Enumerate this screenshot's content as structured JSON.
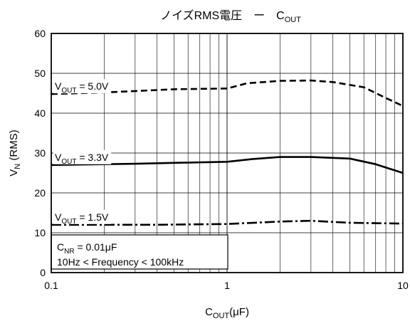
{
  "chart_data": {
    "type": "line",
    "title": "ノイズRMS電圧　ー　C",
    "title_sub": "OUT",
    "xlabel_main": "C",
    "xlabel_sub": "OUT",
    "xlabel_tail": "(μF)",
    "ylabel_main": "V",
    "ylabel_sub": "N",
    "ylabel_tail": " (RMS)",
    "x_scale": "log",
    "xlim": [
      0.1,
      10
    ],
    "ylim": [
      0,
      60
    ],
    "xticks": [
      0.1,
      1,
      10
    ],
    "xtick_labels": [
      "0.1",
      "1",
      "10"
    ],
    "yticks": [
      0,
      10,
      20,
      30,
      40,
      50,
      60
    ],
    "ytick_labels": [
      "0",
      "10",
      "20",
      "30",
      "40",
      "50",
      "60"
    ],
    "grid": true,
    "series": [
      {
        "label_main": "V",
        "label_sub": "OUT",
        "label_tail": " = 5.0V",
        "style": "dashed",
        "points": [
          [
            0.1,
            44.8
          ],
          [
            0.2,
            45.2
          ],
          [
            0.5,
            46.0
          ],
          [
            1.0,
            46.2
          ],
          [
            1.3,
            47.5
          ],
          [
            2.0,
            48.1
          ],
          [
            3.0,
            48.2
          ],
          [
            4.0,
            47.8
          ],
          [
            6.0,
            46.5
          ],
          [
            8.0,
            43.8
          ],
          [
            10,
            41.8
          ]
        ]
      },
      {
        "label_main": "V",
        "label_sub": "OUT",
        "label_tail": " = 3.3V",
        "style": "solid",
        "points": [
          [
            0.1,
            27.0
          ],
          [
            0.3,
            27.3
          ],
          [
            0.6,
            27.6
          ],
          [
            1.0,
            27.8
          ],
          [
            1.4,
            28.5
          ],
          [
            2.0,
            29.0
          ],
          [
            3.0,
            29.0
          ],
          [
            5.0,
            28.6
          ],
          [
            7.0,
            27.2
          ],
          [
            10,
            25.0
          ]
        ]
      },
      {
        "label_main": "V",
        "label_sub": "OUT",
        "label_tail": " = 1.5V",
        "style": "dashdot",
        "points": [
          [
            0.1,
            12.0
          ],
          [
            0.4,
            12.0
          ],
          [
            1.0,
            12.2
          ],
          [
            2.0,
            12.8
          ],
          [
            3.0,
            13.0
          ],
          [
            5.0,
            12.5
          ],
          [
            10,
            12.3
          ]
        ]
      }
    ],
    "annotation": {
      "line1_main": "C",
      "line1_sub": "NR",
      "line1_tail": " = 0.01μF",
      "line2": "10Hz < Frequency < 100kHz"
    }
  }
}
